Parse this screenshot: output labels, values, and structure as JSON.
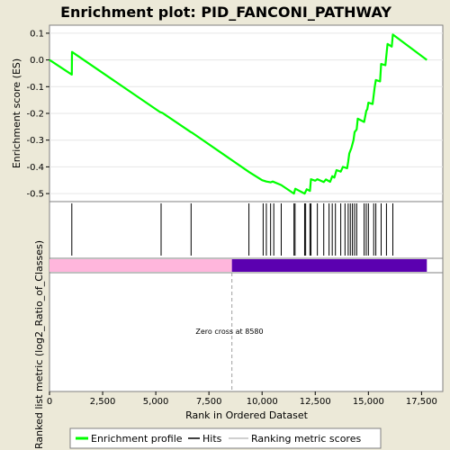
{
  "chart_data": {
    "type": "line",
    "title": "Enrichment plot: PID_FANCONI_PATHWAY",
    "xlabel": "Rank in Ordered Dataset",
    "ylabel_top": "Enrichment score (ES)",
    "ylabel_bottom": "Ranked list metric (log2_Ratio_of_Classes)",
    "xlim": [
      0,
      18500
    ],
    "ylim": [
      -0.53,
      0.13
    ],
    "x_ticks": [
      0,
      2500,
      5000,
      7500,
      10000,
      12500,
      15000,
      17500
    ],
    "x_tick_labels": [
      "0",
      "2,500",
      "5,000",
      "7,500",
      "10,000",
      "12,500",
      "15,000",
      "17,500"
    ],
    "y_ticks": [
      0.1,
      0.0,
      -0.1,
      -0.2,
      -0.3,
      -0.4,
      -0.5
    ],
    "y_tick_labels": [
      "0.1",
      "0.0",
      "-0.1",
      "-0.2",
      "-0.3",
      "-0.4",
      "-0.5"
    ],
    "series": [
      {
        "name": "Enrichment profile",
        "color": "#00ff00",
        "points": [
          [
            0,
            0.0
          ],
          [
            1050,
            -0.055
          ],
          [
            1060,
            0.03
          ],
          [
            5200,
            -0.195
          ],
          [
            5310,
            -0.198
          ],
          [
            6650,
            -0.27
          ],
          [
            6700,
            -0.272
          ],
          [
            9400,
            -0.42
          ],
          [
            10000,
            -0.45
          ],
          [
            10200,
            -0.455
          ],
          [
            10400,
            -0.458
          ],
          [
            10500,
            -0.455
          ],
          [
            10900,
            -0.468
          ],
          [
            11500,
            -0.5
          ],
          [
            11560,
            -0.482
          ],
          [
            12000,
            -0.5
          ],
          [
            12100,
            -0.484
          ],
          [
            12250,
            -0.49
          ],
          [
            12300,
            -0.446
          ],
          [
            12500,
            -0.452
          ],
          [
            12600,
            -0.446
          ],
          [
            12900,
            -0.457
          ],
          [
            13000,
            -0.447
          ],
          [
            13200,
            -0.456
          ],
          [
            13300,
            -0.435
          ],
          [
            13400,
            -0.44
          ],
          [
            13500,
            -0.412
          ],
          [
            13700,
            -0.418
          ],
          [
            13800,
            -0.4
          ],
          [
            14000,
            -0.405
          ],
          [
            14050,
            -0.38
          ],
          [
            14100,
            -0.35
          ],
          [
            14200,
            -0.33
          ],
          [
            14300,
            -0.3
          ],
          [
            14350,
            -0.27
          ],
          [
            14450,
            -0.26
          ],
          [
            14500,
            -0.22
          ],
          [
            14800,
            -0.232
          ],
          [
            14900,
            -0.19
          ],
          [
            14950,
            -0.185
          ],
          [
            15000,
            -0.16
          ],
          [
            15200,
            -0.165
          ],
          [
            15300,
            -0.1
          ],
          [
            15350,
            -0.075
          ],
          [
            15550,
            -0.08
          ],
          [
            15600,
            -0.015
          ],
          [
            15800,
            -0.02
          ],
          [
            15900,
            0.06
          ],
          [
            16100,
            0.05
          ],
          [
            16150,
            0.095
          ],
          [
            17750,
            0.0
          ]
        ]
      }
    ],
    "hits": [
      1050,
      5250,
      6660,
      9380,
      10050,
      10200,
      10400,
      10550,
      10900,
      11500,
      11550,
      12000,
      12050,
      12250,
      12300,
      12600,
      12900,
      13150,
      13300,
      13450,
      13700,
      13900,
      14050,
      14150,
      14250,
      14350,
      14450,
      14800,
      14900,
      15000,
      15250,
      15350,
      15600,
      15850,
      16150
    ],
    "metric_bar": {
      "positive_range": [
        0,
        8580
      ],
      "negative_range": [
        8580,
        17750
      ],
      "positive_color": "#ffb6dc",
      "negative_color": "#5b00b0"
    },
    "zero_cross": 8580,
    "annotation": "Zero cross at 8580",
    "legend": {
      "placement": "bottom",
      "items": [
        {
          "label": "Enrichment profile",
          "color": "#00ff00"
        },
        {
          "label": "Hits",
          "color": "#000000"
        },
        {
          "label": "Ranking metric scores",
          "color": "#c0c0c0"
        }
      ]
    }
  }
}
